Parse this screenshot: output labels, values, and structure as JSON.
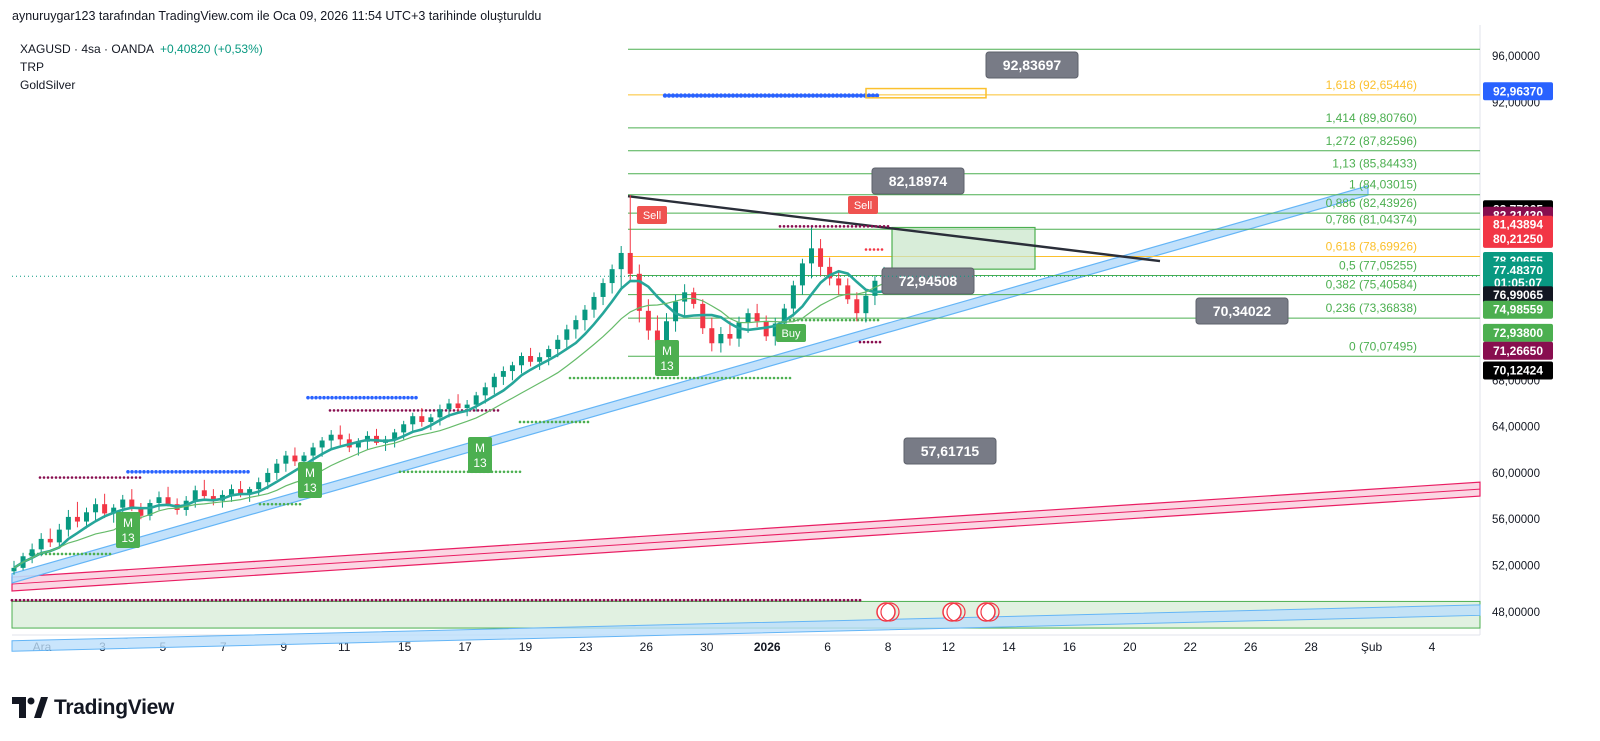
{
  "header": {
    "credit": "aynuruygar123 tarafından TradingView.com ile Oca 09, 2026 11:54 UTC+3 tarihinde oluşturuldu"
  },
  "legend": {
    "symbol": "XAGUSD · 4sa · OANDA",
    "change": "+0,40820 (+0,53%)",
    "indicators": [
      "TRP",
      "GoldSilver"
    ]
  },
  "brand": {
    "name": "TradingView"
  },
  "colors": {
    "up": "#089981",
    "down": "#f23645",
    "fib_line": "#4caf50",
    "fib_text": "#4caf50",
    "fib_gold": "#fbc02d",
    "trend_dark": "#2a2e39",
    "channel_blue": "#64b5f6",
    "channel_pink": "#e91e63",
    "blue_dots": "#2962ff",
    "maroon_dots": "#880e4f"
  },
  "chart_data": {
    "type": "candlestick",
    "symbol": "XAGUSD",
    "interval": "4sa",
    "ylim": [
      46,
      98
    ],
    "y_ticks": [
      "96,00000",
      "92,00000",
      "68,00000",
      "64,00000",
      "60,00000",
      "56,00000",
      "52,00000",
      "48,00000"
    ],
    "x_ticks": [
      "Ara",
      "3",
      "5",
      "7",
      "9",
      "11",
      "15",
      "17",
      "19",
      "23",
      "26",
      "30",
      "2026",
      "6",
      "8",
      "12",
      "14",
      "16",
      "20",
      "22",
      "26",
      "28",
      "Şub",
      "4"
    ],
    "fibonacci": [
      {
        "ratio": "0",
        "label": "0 (70,07495)",
        "value": 70.07495,
        "color": "#4caf50"
      },
      {
        "ratio": "0.236",
        "label": "0,236 (73,36838)",
        "value": 73.36838,
        "color": "#4caf50"
      },
      {
        "ratio": "0.382",
        "label": "0,382 (75,40584)",
        "value": 75.40584,
        "color": "#4caf50"
      },
      {
        "ratio": "0.5",
        "label": "0,5 (77,05255)",
        "value": 77.05255,
        "color": "#4caf50"
      },
      {
        "ratio": "0.618",
        "label": "0,618 (78,69926)",
        "value": 78.69926,
        "color": "#fbc02d"
      },
      {
        "ratio": "0.786",
        "label": "0,786 (81,04374)",
        "value": 81.04374,
        "color": "#4caf50"
      },
      {
        "ratio": "0.886",
        "label": "0,886 (82,43926)",
        "value": 82.43926,
        "color": "#4caf50"
      },
      {
        "ratio": "1",
        "label": "1 (84,03015)",
        "value": 84.03015,
        "color": "#4caf50"
      },
      {
        "ratio": "1.13",
        "label": "1,13 (85,84433)",
        "value": 85.84433,
        "color": "#4caf50"
      },
      {
        "ratio": "1.272",
        "label": "1,272 (87,82596)",
        "value": 87.82596,
        "color": "#4caf50"
      },
      {
        "ratio": "1.414",
        "label": "1,414 (89,80760)",
        "value": 89.8076,
        "color": "#4caf50"
      },
      {
        "ratio": "1.618",
        "label": "1,618 (92,65446)",
        "value": 92.65446,
        "color": "#fbc02d"
      }
    ],
    "price_tags": [
      {
        "text": "92,96370",
        "bg": "#2962ff",
        "fg": "#ffffff",
        "value": 92.9637
      },
      {
        "text": "82,77065",
        "bg": "#000000",
        "fg": "#ffffff",
        "value": 82.77065
      },
      {
        "text": "82,21430",
        "bg": "#880e4f",
        "fg": "#ffffff",
        "value": 82.2143
      },
      {
        "text": "81,43894",
        "bg": "#f23645",
        "fg": "#ffffff",
        "value": 81.43894
      },
      {
        "text": "80,21250",
        "bg": "#f23645",
        "fg": "#ffffff",
        "value": 80.2125
      },
      {
        "text": "78,30655",
        "bg": "#089981",
        "fg": "#ffffff",
        "value": 78.30655
      },
      {
        "text": "77,48370",
        "bg": "#089981",
        "fg": "#ffffff",
        "value": 77.4837
      },
      {
        "text": "01:05:07",
        "bg": "#089981",
        "fg": "#ffffff",
        "value": 76.4
      },
      {
        "text": "76,99065",
        "bg": "#131722",
        "fg": "#ffffff",
        "value": 75.35
      },
      {
        "text": "74,98559",
        "bg": "#4caf50",
        "fg": "#ffffff",
        "value": 74.1
      },
      {
        "text": "72,93800",
        "bg": "#4caf50",
        "fg": "#ffffff",
        "value": 72.1
      },
      {
        "text": "71,26650",
        "bg": "#880e4f",
        "fg": "#ffffff",
        "value": 70.55
      },
      {
        "text": "70,12424",
        "bg": "#000000",
        "fg": "#ffffff",
        "value": 68.85
      }
    ],
    "callouts": [
      {
        "text": "92,83697",
        "value": 92.83697
      },
      {
        "text": "82,18974",
        "value": 82.18974
      },
      {
        "text": "72,94508",
        "value": 72.94508
      },
      {
        "text": "70,34022",
        "value": 70.34022
      },
      {
        "text": "57,61715",
        "value": 57.61715
      }
    ],
    "signals": [
      {
        "text": "Sell",
        "kind": "sell"
      },
      {
        "text": "Sell",
        "kind": "sell"
      },
      {
        "text": "Buy",
        "kind": "buy"
      }
    ],
    "markers": [
      {
        "text": "M\n13"
      },
      {
        "text": "M\n13"
      },
      {
        "text": "M\n13"
      },
      {
        "text": "M\n13"
      }
    ],
    "candles": [
      [
        51.5,
        51.2,
        52.4,
        51.8
      ],
      [
        51.8,
        51.6,
        53.1,
        52.8
      ],
      [
        52.8,
        52.2,
        53.9,
        53.4
      ],
      [
        53.4,
        52.8,
        54.8,
        54.3
      ],
      [
        54.3,
        53.6,
        55.2,
        54.0
      ],
      [
        54.0,
        53.5,
        55.6,
        55.1
      ],
      [
        55.1,
        54.5,
        56.8,
        56.2
      ],
      [
        56.2,
        55.3,
        57.5,
        55.8
      ],
      [
        55.8,
        55.2,
        57.0,
        56.6
      ],
      [
        56.6,
        55.9,
        57.8,
        57.3
      ],
      [
        57.3,
        56.1,
        58.2,
        56.5
      ],
      [
        56.5,
        55.7,
        57.3,
        57.0
      ],
      [
        57.0,
        56.2,
        58.1,
        57.7
      ],
      [
        57.7,
        56.7,
        58.6,
        56.9
      ],
      [
        56.9,
        56.0,
        57.4,
        56.3
      ],
      [
        56.3,
        55.9,
        57.7,
        57.4
      ],
      [
        57.4,
        56.8,
        58.4,
        57.9
      ],
      [
        57.9,
        57.1,
        58.8,
        57.3
      ],
      [
        57.3,
        56.4,
        57.8,
        56.8
      ],
      [
        56.8,
        56.3,
        58.0,
        57.6
      ],
      [
        57.6,
        57.0,
        58.9,
        58.5
      ],
      [
        58.5,
        57.8,
        59.4,
        58.0
      ],
      [
        58.0,
        57.2,
        58.6,
        57.6
      ],
      [
        57.6,
        57.0,
        58.5,
        58.1
      ],
      [
        58.1,
        57.5,
        59.0,
        58.6
      ],
      [
        58.6,
        57.9,
        59.3,
        58.2
      ],
      [
        58.2,
        57.5,
        58.8,
        58.6
      ],
      [
        58.6,
        58.0,
        59.6,
        59.2
      ],
      [
        59.2,
        58.6,
        60.4,
        60.0
      ],
      [
        60.0,
        59.4,
        61.2,
        60.8
      ],
      [
        60.8,
        60.1,
        61.9,
        61.5
      ],
      [
        61.5,
        60.6,
        62.2,
        61.0
      ],
      [
        61.0,
        60.3,
        61.8,
        61.5
      ],
      [
        61.5,
        60.8,
        62.6,
        62.2
      ],
      [
        62.2,
        61.4,
        63.1,
        62.8
      ],
      [
        62.8,
        62.0,
        63.7,
        63.3
      ],
      [
        63.3,
        62.4,
        64.1,
        62.9
      ],
      [
        62.9,
        61.8,
        63.4,
        62.2
      ],
      [
        62.2,
        61.5,
        63.0,
        62.7
      ],
      [
        62.7,
        62.0,
        63.6,
        63.2
      ],
      [
        63.2,
        62.4,
        63.8,
        62.6
      ],
      [
        62.6,
        61.9,
        63.2,
        62.9
      ],
      [
        62.9,
        62.2,
        63.8,
        63.5
      ],
      [
        63.5,
        62.9,
        64.5,
        64.2
      ],
      [
        64.2,
        63.5,
        65.2,
        64.9
      ],
      [
        64.9,
        64.0,
        65.6,
        64.4
      ],
      [
        64.4,
        63.7,
        65.1,
        64.8
      ],
      [
        64.8,
        64.1,
        65.9,
        65.5
      ],
      [
        65.5,
        64.8,
        66.4,
        66.0
      ],
      [
        66.0,
        65.2,
        66.8,
        65.6
      ],
      [
        65.6,
        64.9,
        66.3,
        65.9
      ],
      [
        65.9,
        65.3,
        67.0,
        66.7
      ],
      [
        66.7,
        66.0,
        67.8,
        67.4
      ],
      [
        67.4,
        66.8,
        68.6,
        68.3
      ],
      [
        68.3,
        67.6,
        69.2,
        68.8
      ],
      [
        68.8,
        68.0,
        69.6,
        69.3
      ],
      [
        69.3,
        68.6,
        70.4,
        70.1
      ],
      [
        70.1,
        69.2,
        70.8,
        69.6
      ],
      [
        69.6,
        68.9,
        70.4,
        70.0
      ],
      [
        70.0,
        69.3,
        71.0,
        70.7
      ],
      [
        70.7,
        70.0,
        71.9,
        71.5
      ],
      [
        71.5,
        70.8,
        72.8,
        72.4
      ],
      [
        72.4,
        71.6,
        73.6,
        73.2
      ],
      [
        73.2,
        72.3,
        74.5,
        74.1
      ],
      [
        74.1,
        73.4,
        75.6,
        75.2
      ],
      [
        75.2,
        74.5,
        76.8,
        76.4
      ],
      [
        76.4,
        75.5,
        78.0,
        77.6
      ],
      [
        77.6,
        76.0,
        79.6,
        79.0
      ],
      [
        79.0,
        76.5,
        84.0,
        77.2
      ],
      [
        77.2,
        73.0,
        78.0,
        74.0
      ],
      [
        74.0,
        71.5,
        75.0,
        72.3
      ],
      [
        72.3,
        70.1,
        73.6,
        71.2
      ],
      [
        71.2,
        70.4,
        73.8,
        73.1
      ],
      [
        73.1,
        72.2,
        75.4,
        74.8
      ],
      [
        74.8,
        73.6,
        76.3,
        75.6
      ],
      [
        75.6,
        74.2,
        76.0,
        74.6
      ],
      [
        74.6,
        72.0,
        75.0,
        72.5
      ],
      [
        72.5,
        70.5,
        73.4,
        71.2
      ],
      [
        71.2,
        70.4,
        72.6,
        72.0
      ],
      [
        72.0,
        71.0,
        73.1,
        71.6
      ],
      [
        71.6,
        70.9,
        73.5,
        73.0
      ],
      [
        73.0,
        72.1,
        74.2,
        73.8
      ],
      [
        73.8,
        72.6,
        74.6,
        73.1
      ],
      [
        73.1,
        71.4,
        73.6,
        71.8
      ],
      [
        71.8,
        71.0,
        73.4,
        72.9
      ],
      [
        72.9,
        72.0,
        74.6,
        74.2
      ],
      [
        74.2,
        73.5,
        76.6,
        76.2
      ],
      [
        76.2,
        75.4,
        78.5,
        78.1
      ],
      [
        78.1,
        76.8,
        81.2,
        79.4
      ],
      [
        79.4,
        77.0,
        80.2,
        77.8
      ],
      [
        77.8,
        76.2,
        78.6,
        76.8
      ],
      [
        76.8,
        75.4,
        77.4,
        76.2
      ],
      [
        76.2,
        74.6,
        76.8,
        75.0
      ],
      [
        75.0,
        73.1,
        75.6,
        73.8
      ],
      [
        73.8,
        73.0,
        75.8,
        75.3
      ],
      [
        75.3,
        74.5,
        77.0,
        76.6
      ],
      [
        76.6,
        75.8,
        77.8,
        77.2
      ]
    ]
  }
}
